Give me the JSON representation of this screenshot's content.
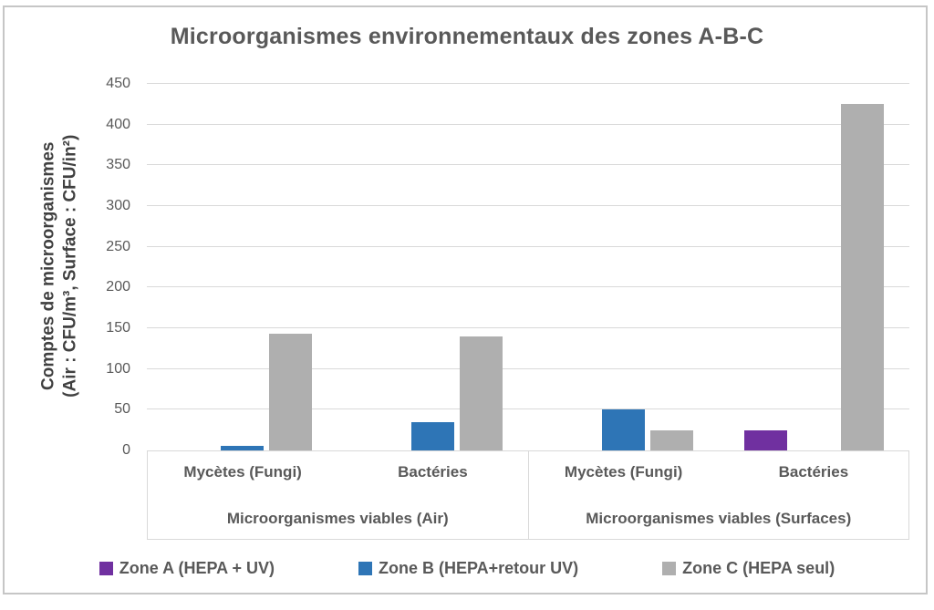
{
  "title": "Microorganismes environnementaux des zones A-B-C",
  "chart_data": {
    "type": "bar",
    "title": "Microorganismes environnementaux des zones A-B-C",
    "ylabel_lines": [
      "Comptes de microorganismes",
      "(Air : CFU/m³, Surface : CFU/in²)"
    ],
    "ylim": [
      0,
      450
    ],
    "ytick_step": 50,
    "yticks": [
      0,
      50,
      100,
      150,
      200,
      250,
      300,
      350,
      400,
      450
    ],
    "grid": true,
    "legend_position": "bottom",
    "groups": [
      {
        "label": "Microorganismes viables (Air)",
        "categories": [
          "Mycètes (Fungi)",
          "Bactéries"
        ]
      },
      {
        "label": "Microorganismes viables (Surfaces)",
        "categories": [
          "Mycètes (Fungi)",
          "Bactéries"
        ]
      }
    ],
    "series": [
      {
        "name": "Zone A (HEPA + UV)",
        "color": "#7030A0",
        "values": [
          0,
          0,
          0,
          25
        ]
      },
      {
        "name": "Zone B (HEPA+retour UV)",
        "color": "#2E75B6",
        "values": [
          6,
          35,
          50,
          0
        ]
      },
      {
        "name": "Zone C (HEPA seul)",
        "color": "#AFAFAF",
        "values": [
          143,
          140,
          25,
          425
        ]
      }
    ]
  },
  "colors": {
    "title_text": "#595959",
    "axis_text": "#595959",
    "gridline": "#D9D9D9",
    "frame_border": "#C6C6C6",
    "zone_a": "#7030A0",
    "zone_b": "#2E75B6",
    "zone_c": "#AFAFAF"
  }
}
